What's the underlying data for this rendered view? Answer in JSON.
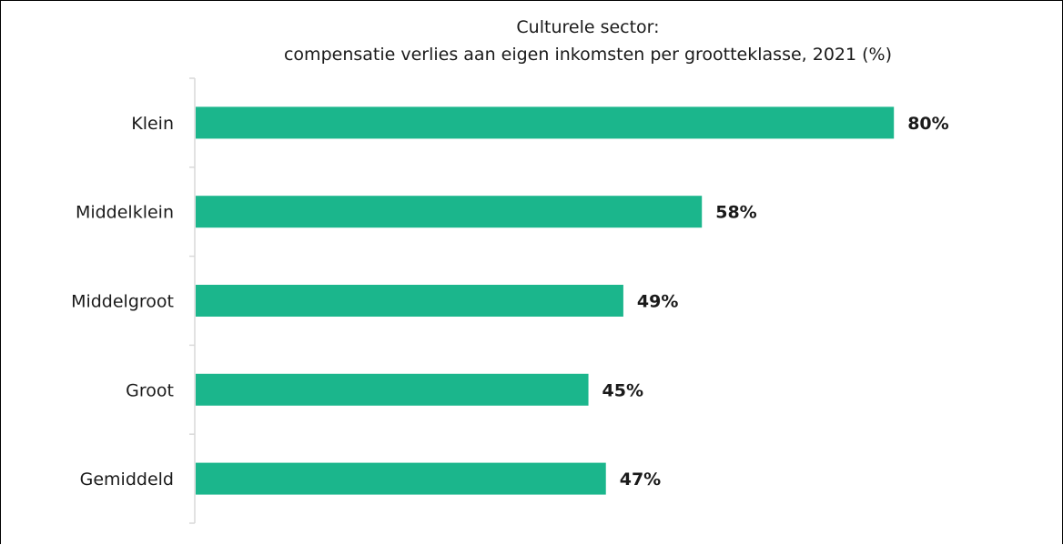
{
  "chart_data": {
    "type": "bar",
    "orientation": "horizontal",
    "title": "Culturele sector:",
    "subtitle": "compensatie verlies aan eigen inkomsten per grootteklasse, 2021 (%)",
    "categories": [
      "Klein",
      "Middelklein",
      "Middelgroot",
      "Groot",
      "Gemiddeld"
    ],
    "values": [
      80,
      58,
      49,
      45,
      47
    ],
    "value_labels": [
      "80%",
      "58%",
      "49%",
      "45%",
      "47%"
    ],
    "xlim": [
      0,
      100
    ],
    "unit": "%",
    "bar_color": "#1bb68c",
    "grid": false,
    "legend": "none"
  }
}
